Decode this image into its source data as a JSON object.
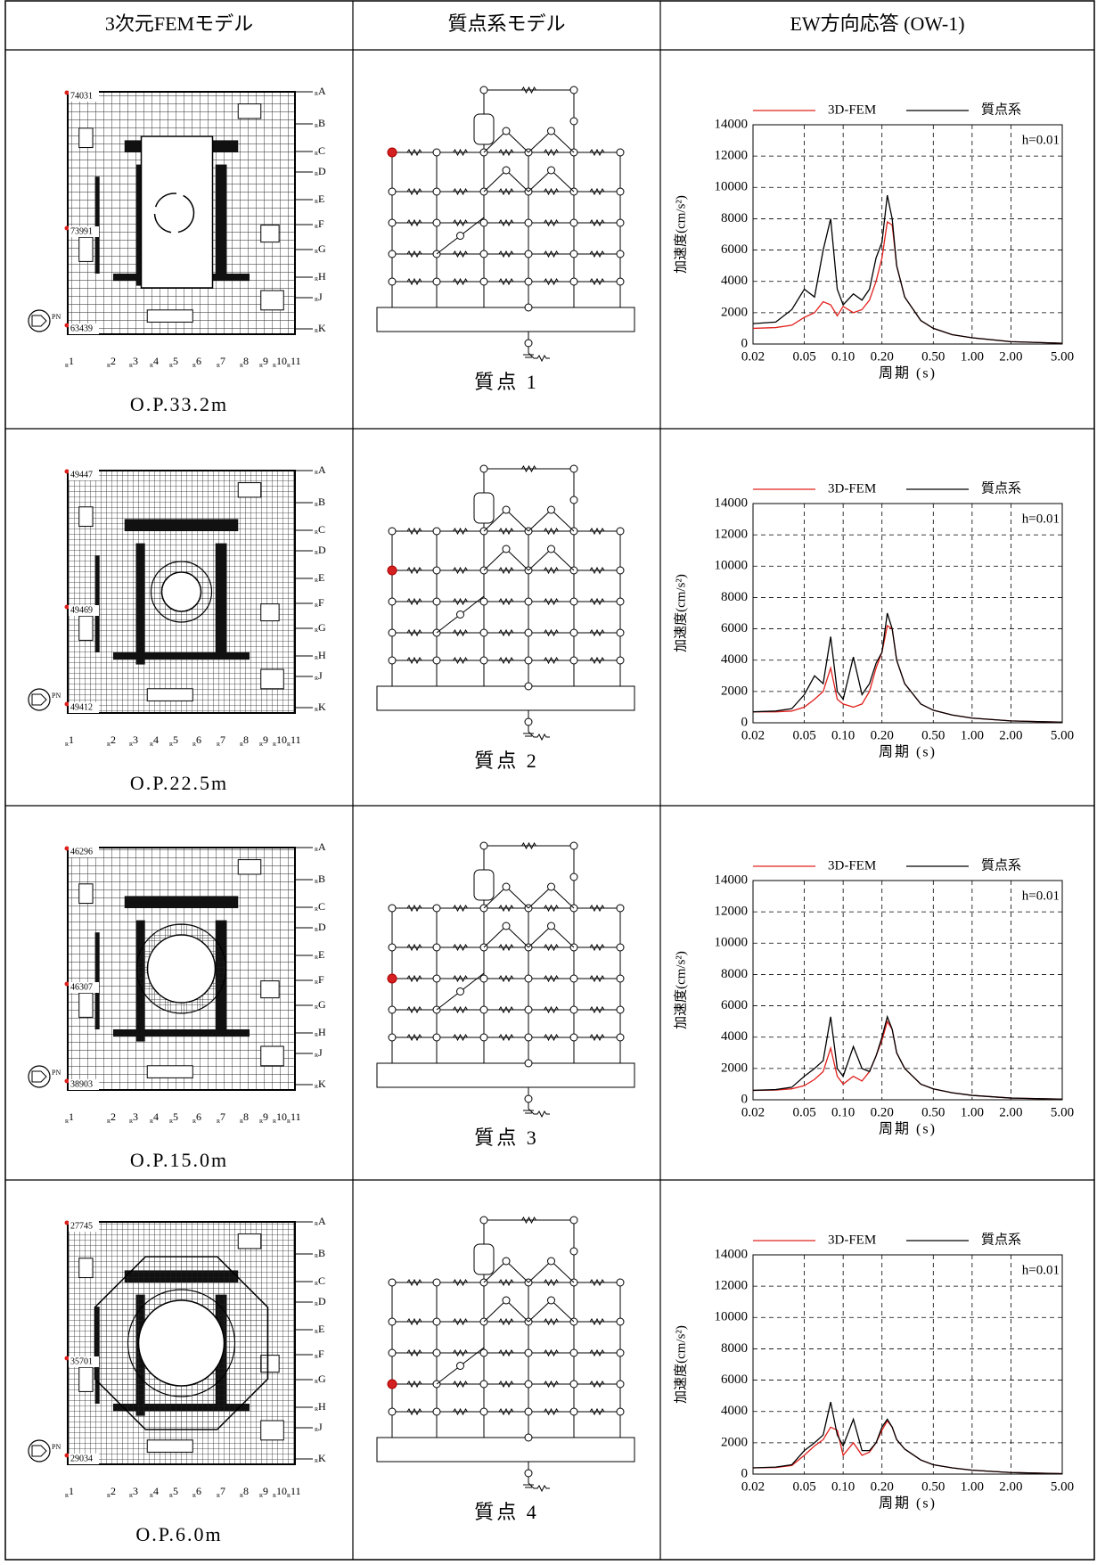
{
  "table": {
    "headers": [
      "3次元FEMモデル",
      "質点系モデル",
      "EW方向応答 (OW-1)"
    ],
    "rows": [
      {
        "elevation": "O.P.33.2m",
        "fem_node_ids": [
          "74031",
          "73991",
          "63439"
        ],
        "mass_point": "質点 1",
        "chart": {
          "type": "line",
          "x_label": "周期 (s)",
          "y_label": "加速度(cm/s²)",
          "annotation": "h=0.01",
          "x": [
            0.02,
            0.03,
            0.04,
            0.05,
            0.06,
            0.07,
            0.08,
            0.09,
            0.1,
            0.12,
            0.14,
            0.16,
            0.18,
            0.2,
            0.22,
            0.24,
            0.26,
            0.3,
            0.4,
            0.5,
            0.7,
            1,
            2,
            5
          ],
          "series": [
            {
              "name": "3D-FEM",
              "color": "#e0201c",
              "values": [
                1000,
                1050,
                1200,
                1700,
                2000,
                2700,
                2500,
                1800,
                2400,
                2000,
                2200,
                2800,
                4000,
                5500,
                7800,
                7600,
                5000,
                3000,
                1500,
                1000,
                600,
                400,
                150,
                50
              ]
            },
            {
              "name": "質点系",
              "color": "#000000",
              "values": [
                1300,
                1400,
                2200,
                3500,
                3000,
                6000,
                8000,
                3500,
                2500,
                3200,
                2800,
                3500,
                5500,
                6500,
                9500,
                8000,
                5000,
                3000,
                1500,
                1000,
                600,
                400,
                150,
                50
              ]
            }
          ],
          "xlim": [
            0.02,
            5
          ],
          "ylim": [
            0,
            14000
          ],
          "log_x": true,
          "grid": true,
          "xticks": [
            0.02,
            0.05,
            {
              "value": 0.1,
              "label": "0.10"
            },
            {
              "value": 0.2,
              "label": "0.20"
            },
            {
              "value": 0.5,
              "label": "0.50"
            },
            {
              "value": 1,
              "label": "1.00"
            },
            {
              "value": 2,
              "label": "2.00"
            },
            {
              "value": 5,
              "label": "5.00"
            }
          ],
          "yticks": [
            0,
            2000,
            4000,
            6000,
            8000,
            10000,
            12000,
            14000
          ]
        }
      },
      {
        "elevation": "O.P.22.5m",
        "fem_node_ids": [
          "49447",
          "49469",
          "49412"
        ],
        "mass_point": "質点 2",
        "chart": {
          "type": "line",
          "x_label": "周期 (s)",
          "y_label": "加速度(cm/s²)",
          "annotation": "h=0.01",
          "x": [
            0.02,
            0.03,
            0.04,
            0.05,
            0.06,
            0.07,
            0.08,
            0.09,
            0.1,
            0.12,
            0.14,
            0.16,
            0.18,
            0.2,
            0.22,
            0.24,
            0.26,
            0.3,
            0.4,
            0.5,
            0.7,
            1,
            2,
            5
          ],
          "series": [
            {
              "name": "3D-FEM",
              "color": "#e0201c",
              "values": [
                700,
                700,
                750,
                1000,
                1500,
                2000,
                3500,
                1500,
                1200,
                1000,
                1200,
                2000,
                3500,
                4500,
                6200,
                6000,
                4000,
                2500,
                1200,
                800,
                500,
                300,
                120,
                40
              ]
            },
            {
              "name": "質点系",
              "color": "#000000",
              "values": [
                700,
                750,
                900,
                1800,
                3000,
                2500,
                5500,
                2000,
                1500,
                4200,
                1800,
                2500,
                3800,
                4500,
                7000,
                6000,
                4000,
                2500,
                1200,
                800,
                500,
                300,
                120,
                40
              ]
            }
          ],
          "xlim": [
            0.02,
            5
          ],
          "ylim": [
            0,
            14000
          ],
          "log_x": true,
          "grid": true,
          "xticks": [
            0.02,
            0.05,
            {
              "value": 0.1,
              "label": "0.10"
            },
            {
              "value": 0.2,
              "label": "0.20"
            },
            {
              "value": 0.5,
              "label": "0.50"
            },
            {
              "value": 1,
              "label": "1.00"
            },
            {
              "value": 2,
              "label": "2.00"
            },
            {
              "value": 5,
              "label": "5.00"
            }
          ],
          "yticks": [
            0,
            2000,
            4000,
            6000,
            8000,
            10000,
            12000,
            14000
          ]
        }
      },
      {
        "elevation": "O.P.15.0m",
        "fem_node_ids": [
          "46296",
          "46307",
          "38903"
        ],
        "mass_point": "質点 3",
        "chart": {
          "type": "line",
          "x_label": "周期 (s)",
          "y_label": "加速度(cm/s²)",
          "annotation": "h=0.01",
          "x": [
            0.02,
            0.03,
            0.04,
            0.05,
            0.06,
            0.07,
            0.08,
            0.09,
            0.1,
            0.12,
            0.14,
            0.16,
            0.18,
            0.2,
            0.22,
            0.24,
            0.26,
            0.3,
            0.4,
            0.5,
            0.7,
            1,
            2,
            5
          ],
          "series": [
            {
              "name": "3D-FEM",
              "color": "#e0201c",
              "values": [
                600,
                620,
                700,
                900,
                1300,
                1800,
                3300,
                1500,
                1000,
                1500,
                1200,
                1800,
                2800,
                3800,
                5000,
                4500,
                3000,
                2000,
                1000,
                700,
                450,
                280,
                110,
                40
              ]
            },
            {
              "name": "質点系",
              "color": "#000000",
              "values": [
                600,
                650,
                800,
                1500,
                2000,
                2500,
                5300,
                2000,
                1500,
                3400,
                2000,
                1800,
                2800,
                4000,
                5300,
                4500,
                3000,
                2000,
                1000,
                700,
                450,
                280,
                110,
                40
              ]
            }
          ],
          "xlim": [
            0.02,
            5
          ],
          "ylim": [
            0,
            14000
          ],
          "log_x": true,
          "grid": true,
          "xticks": [
            0.02,
            0.05,
            {
              "value": 0.1,
              "label": "0.10"
            },
            {
              "value": 0.2,
              "label": "0.20"
            },
            {
              "value": 0.5,
              "label": "0.50"
            },
            {
              "value": 1,
              "label": "1.00"
            },
            {
              "value": 2,
              "label": "2.00"
            },
            {
              "value": 5,
              "label": "5.00"
            }
          ],
          "yticks": [
            0,
            2000,
            4000,
            6000,
            8000,
            10000,
            12000,
            14000
          ]
        }
      },
      {
        "elevation": "O.P.6.0m",
        "fem_node_ids": [
          "27745",
          "35701",
          "29034"
        ],
        "mass_point": "質点 4",
        "chart": {
          "type": "line",
          "x_label": "周期 (s)",
          "y_label": "加速度(cm/s²)",
          "annotation": "h=0.01",
          "x": [
            0.02,
            0.03,
            0.04,
            0.05,
            0.06,
            0.07,
            0.08,
            0.09,
            0.1,
            0.12,
            0.14,
            0.16,
            0.18,
            0.2,
            0.22,
            0.24,
            0.26,
            0.3,
            0.4,
            0.5,
            0.7,
            1,
            2,
            5
          ],
          "series": [
            {
              "name": "3D-FEM",
              "color": "#e0201c",
              "values": [
                400,
                420,
                550,
                1200,
                1800,
                2200,
                3000,
                2800,
                1200,
                2000,
                1200,
                1400,
                2000,
                2800,
                3400,
                3000,
                2200,
                1600,
                900,
                600,
                400,
                250,
                100,
                30
              ]
            },
            {
              "name": "質点系",
              "color": "#000000",
              "values": [
                400,
                450,
                600,
                1500,
                2000,
                2500,
                4600,
                2500,
                1800,
                3500,
                1500,
                1500,
                2000,
                3000,
                3500,
                3000,
                2200,
                1600,
                900,
                600,
                400,
                250,
                100,
                30
              ]
            }
          ],
          "xlim": [
            0.02,
            5
          ],
          "ylim": [
            0,
            14000
          ],
          "log_x": true,
          "grid": true,
          "xticks": [
            0.02,
            0.05,
            {
              "value": 0.1,
              "label": "0.10"
            },
            {
              "value": 0.2,
              "label": "0.20"
            },
            {
              "value": 0.5,
              "label": "0.50"
            },
            {
              "value": 1,
              "label": "1.00"
            },
            {
              "value": 2,
              "label": "2.00"
            },
            {
              "value": 5,
              "label": "5.00"
            }
          ],
          "yticks": [
            0,
            2000,
            4000,
            6000,
            8000,
            10000,
            12000,
            14000
          ]
        }
      }
    ]
  },
  "fem_grid": {
    "row_labels": [
      "A",
      "B",
      "C",
      "D",
      "E",
      "F",
      "G",
      "H",
      "J",
      "K"
    ],
    "column_prefix": "R",
    "column_labels": [
      "1",
      "2",
      "3",
      "4",
      "5",
      "6",
      "7",
      "8",
      "9",
      "10",
      "11"
    ],
    "direction_label": "PN"
  }
}
